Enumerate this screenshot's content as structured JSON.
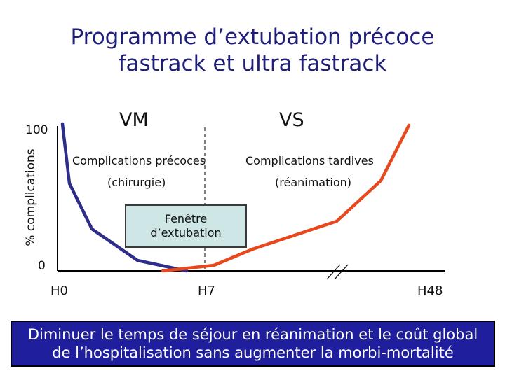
{
  "title": {
    "line1": "Programme d’extubation précoce",
    "line2": "fastrack et ultra fastrack"
  },
  "axes": {
    "y_top": "100",
    "y_bottom": "0",
    "y_label": "% complications",
    "x_ticks": [
      "H0",
      "H7",
      "H48"
    ]
  },
  "phases": {
    "left": "VM",
    "right": "VS"
  },
  "annotations": {
    "early": "Complications précoces",
    "early_cause": "(chirurgie)",
    "late": "Complications tardives",
    "late_cause": "(réanimation)",
    "window": "Fenêtre\nd’extubation"
  },
  "banner": {
    "line1": "Diminuer le temps de séjour en réanimation et le coût global",
    "line2": "de l’hospitalisation sans augmenter la morbi-mortalité"
  },
  "colors": {
    "early_curve": "#2e2e8a",
    "late_curve": "#e8481c",
    "window_fill": "#cfe6e6",
    "banner_fill": "#1f1f9e",
    "title": "#1f1f7a"
  }
}
